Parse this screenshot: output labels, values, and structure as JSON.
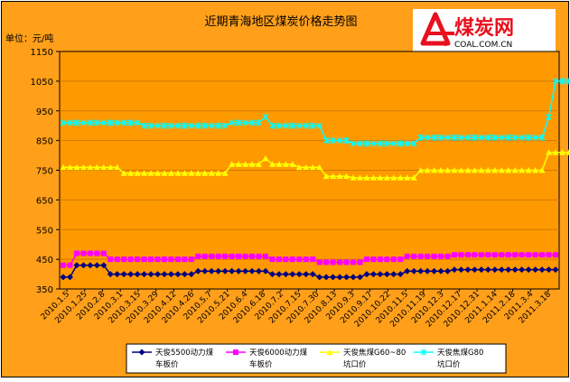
{
  "logo": {
    "brand_text": "煤炭网",
    "domain_text": "COAL.COM.CN"
  },
  "colors": {
    "frame_bg": "#ff9f1a",
    "plot_bg": "#ff9900",
    "gridline": "#d07a00",
    "logo_red": "#e8101e"
  },
  "chart_data": {
    "type": "line",
    "title": "近期青海地区煤炭价格走势图",
    "unit_label": "单位：元/吨",
    "ylim": [
      350,
      1150
    ],
    "yticks": [
      350,
      450,
      550,
      650,
      750,
      850,
      950,
      1050,
      1150
    ],
    "grid": "horizontal",
    "xtick_labels": [
      "2010.1.5",
      "2010.1.25",
      "2010.2.8",
      "2010.3.1",
      "2010.3.15",
      "2010.3.29",
      "2010.4.12",
      "2010.4.26",
      "2010.5.7",
      "2010.5.21",
      "2010.6.4",
      "2010.6.18",
      "2010.7.2",
      "2010.7.15",
      "2010.7.30",
      "2010.8.13",
      "2010.9.3",
      "2010.9.17",
      "2010.10.22",
      "2010.11.5",
      "2010.11.19",
      "2010.12.3",
      "2010.12.17",
      "2010.12.31",
      "2011.1.14",
      "2011.2.18",
      "2011.3.4",
      "2011.3.18"
    ],
    "series": [
      {
        "name": "天俊5500动力煤 车板价",
        "legend_lines": [
          "天俊5500动力煤",
          "车板价"
        ],
        "color": "#000080",
        "marker": "diamond",
        "values": [
          390,
          390,
          430,
          430,
          430,
          430,
          430,
          400,
          400,
          400,
          400,
          400,
          400,
          400,
          400,
          400,
          400,
          400,
          400,
          400,
          410,
          410,
          410,
          410,
          410,
          410,
          410,
          410,
          410,
          410,
          410,
          400,
          400,
          400,
          400,
          400,
          400,
          400,
          390,
          390,
          390,
          390,
          390,
          390,
          390,
          400,
          400,
          400,
          400,
          400,
          400,
          410,
          410,
          410,
          410,
          410,
          410,
          410,
          415,
          415,
          415,
          415,
          415,
          415,
          415,
          415,
          415,
          415,
          415,
          415,
          415,
          415,
          415,
          415
        ]
      },
      {
        "name": "天俊6000动力煤 车板价",
        "legend_lines": [
          "天俊6000动力煤",
          "车板价"
        ],
        "color": "#ff00ff",
        "marker": "square",
        "values": [
          430,
          430,
          470,
          470,
          470,
          470,
          470,
          450,
          450,
          450,
          450,
          450,
          450,
          450,
          450,
          450,
          450,
          450,
          450,
          450,
          460,
          460,
          460,
          460,
          460,
          460,
          460,
          460,
          460,
          460,
          460,
          450,
          450,
          450,
          450,
          450,
          450,
          450,
          440,
          440,
          440,
          440,
          440,
          440,
          440,
          450,
          450,
          450,
          450,
          450,
          450,
          460,
          460,
          460,
          460,
          460,
          460,
          460,
          465,
          465,
          465,
          465,
          465,
          465,
          465,
          465,
          465,
          465,
          465,
          465,
          465,
          465,
          465,
          465
        ]
      },
      {
        "name": "天俊焦煤G60~80 坑口价",
        "legend_lines": [
          "天俊焦煤G60~80",
          "坑口价"
        ],
        "color": "#ffff00",
        "marker": "triangle",
        "values": [
          760,
          760,
          760,
          760,
          760,
          760,
          760,
          760,
          760,
          740,
          740,
          740,
          740,
          740,
          740,
          740,
          740,
          740,
          740,
          740,
          740,
          740,
          740,
          740,
          740,
          770,
          770,
          770,
          770,
          770,
          790,
          770,
          770,
          770,
          770,
          760,
          760,
          760,
          760,
          730,
          730,
          730,
          730,
          725,
          725,
          725,
          725,
          725,
          725,
          725,
          725,
          725,
          725,
          750,
          750,
          750,
          750,
          750,
          750,
          750,
          750,
          750,
          750,
          750,
          750,
          750,
          750,
          750,
          750,
          750,
          750,
          750,
          810,
          810,
          810,
          810,
          810
        ]
      },
      {
        "name": "天俊焦煤G80 坑口价",
        "legend_lines": [
          "天俊焦煤G80",
          "坑口价"
        ],
        "color": "#00ffff",
        "marker": "asterisk",
        "values": [
          910,
          910,
          910,
          910,
          910,
          910,
          910,
          910,
          910,
          910,
          910,
          910,
          900,
          900,
          900,
          900,
          900,
          900,
          900,
          900,
          900,
          900,
          900,
          900,
          900,
          910,
          910,
          910,
          910,
          910,
          930,
          900,
          900,
          900,
          900,
          900,
          900,
          900,
          900,
          850,
          850,
          850,
          850,
          840,
          840,
          840,
          840,
          840,
          840,
          840,
          840,
          840,
          840,
          860,
          860,
          860,
          860,
          860,
          860,
          860,
          860,
          860,
          860,
          860,
          860,
          860,
          860,
          860,
          860,
          860,
          860,
          860,
          930,
          1050,
          1050,
          1050,
          1050,
          1050
        ]
      }
    ]
  }
}
